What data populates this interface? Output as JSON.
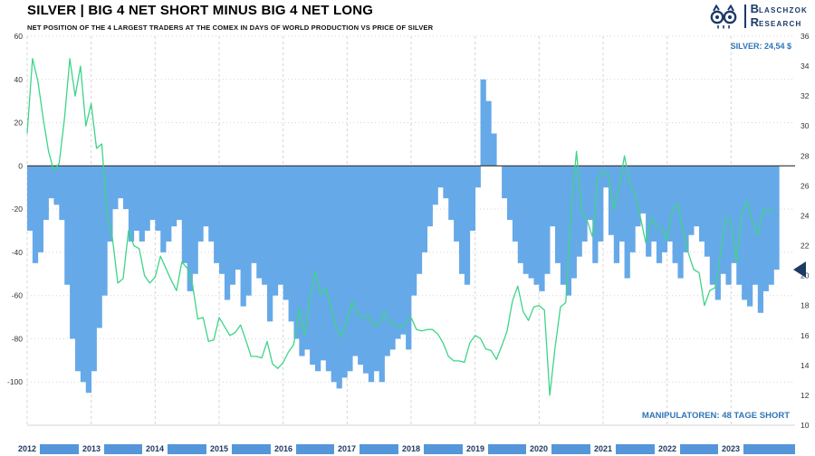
{
  "header": {
    "title": "SILVER | BIG 4 NET SHORT MINUS BIG 4 NET LONG",
    "subtitle": "NET POSITION OF THE 4 LARGEST TRADERS AT THE COMEX IN DAYS OF WORLD PRODUCTION VS PRICE OF SILVER",
    "brand": {
      "line1_initial": "B",
      "line1_rest": "LASCHZOK",
      "line2_initial": "R",
      "line2_rest": "ESEARCH"
    }
  },
  "annotations": {
    "price_label": "SILVER: 24,54 $",
    "manipulators_label": "MANIPULATOREN: 48 TAGE SHORT"
  },
  "colors": {
    "area_blue": "#66a9e8",
    "band_blue": "#5596db",
    "line_green": "#3ed488",
    "annotation_blue": "#2e75b6",
    "brand_navy": "#1b3a66",
    "grid": "#d4d4d4",
    "zero_line": "#333333",
    "tick_text": "#333333"
  },
  "chart_data": {
    "type": "area+line",
    "title": "SILVER | BIG 4 NET SHORT MINUS BIG 4 NET LONG",
    "x_range": [
      2012,
      2024
    ],
    "x_axis_years": [
      2012,
      2013,
      2014,
      2015,
      2016,
      2017,
      2018,
      2019,
      2020,
      2021,
      2022,
      2023
    ],
    "axis_left": {
      "min": -120,
      "max": 60,
      "ticks": [
        60,
        40,
        20,
        0,
        -20,
        -40,
        -60,
        -80,
        -100
      ]
    },
    "axis_right": {
      "min": 10,
      "max": 36,
      "ticks": [
        36,
        34,
        32,
        30,
        28,
        26,
        24,
        22,
        20,
        18,
        16,
        14,
        12,
        10
      ]
    },
    "grid": true,
    "legend": "none",
    "series": [
      {
        "name": "BIG 4 NET SHORT MINUS BIG 4 NET LONG (days of world production)",
        "type": "bar",
        "axis": "left",
        "color_key": "area_blue",
        "start_year": 2012,
        "interval_months": 1,
        "values": [
          -30,
          -45,
          -40,
          -25,
          -15,
          -18,
          -25,
          -55,
          -80,
          -95,
          -100,
          -105,
          -95,
          -75,
          -60,
          -35,
          -20,
          -15,
          -20,
          -35,
          -30,
          -35,
          -30,
          -25,
          -30,
          -40,
          -35,
          -28,
          -25,
          -45,
          -58,
          -50,
          -35,
          -28,
          -35,
          -45,
          -50,
          -62,
          -55,
          -48,
          -65,
          -60,
          -45,
          -52,
          -55,
          -72,
          -60,
          -55,
          -62,
          -72,
          -80,
          -88,
          -85,
          -92,
          -95,
          -90,
          -95,
          -100,
          -103,
          -98,
          -95,
          -88,
          -92,
          -96,
          -100,
          -95,
          -100,
          -88,
          -85,
          -80,
          -78,
          -85,
          -60,
          -50,
          -40,
          -28,
          -18,
          -10,
          -15,
          -25,
          -35,
          -50,
          -55,
          -30,
          -10,
          40,
          30,
          15,
          0,
          -15,
          -25,
          -35,
          -45,
          -50,
          -52,
          -55,
          -58,
          -50,
          -28,
          -45,
          -55,
          -60,
          -52,
          -42,
          -35,
          -25,
          -45,
          -35,
          -10,
          -32,
          -45,
          -35,
          -52,
          -40,
          -28,
          -22,
          -42,
          -35,
          -45,
          -40,
          -35,
          -45,
          -52,
          -40,
          -32,
          -28,
          -35,
          -42,
          -55,
          -62,
          -50,
          -55,
          -45,
          -55,
          -62,
          -65,
          -55,
          -68,
          -58,
          -55,
          -48
        ]
      },
      {
        "name": "SILVER price ($)",
        "type": "line",
        "axis": "right",
        "color_key": "line_green",
        "start_year": 2012,
        "interval_months": 1,
        "values": [
          29.5,
          34.5,
          33.0,
          30.5,
          28.3,
          27.0,
          27.5,
          30.5,
          34.5,
          32.0,
          34.0,
          30.0,
          31.5,
          28.5,
          28.8,
          24.0,
          22.5,
          19.5,
          19.8,
          23.0,
          22.0,
          21.8,
          20.0,
          19.5,
          19.9,
          21.3,
          20.5,
          19.7,
          19.0,
          20.9,
          20.5,
          19.4,
          17.1,
          17.2,
          15.6,
          15.7,
          17.2,
          16.6,
          16.0,
          16.2,
          16.7,
          15.7,
          14.6,
          14.6,
          14.5,
          15.6,
          14.1,
          13.8,
          14.2,
          14.9,
          15.4,
          17.8,
          16.0,
          18.4,
          20.3,
          18.7,
          19.2,
          17.8,
          16.5,
          15.9,
          17.1,
          18.3,
          17.4,
          17.2,
          17.3,
          16.6,
          16.8,
          17.6,
          16.9,
          16.7,
          16.5,
          16.9,
          17.2,
          16.4,
          16.3,
          16.4,
          16.4,
          16.1,
          15.5,
          14.6,
          14.3,
          14.3,
          14.2,
          15.5,
          16.0,
          15.8,
          15.1,
          15.0,
          14.4,
          15.3,
          16.3,
          18.3,
          19.3,
          17.6,
          17.0,
          17.9,
          18.0,
          17.7,
          12.0,
          15.2,
          17.9,
          18.2,
          24.4,
          28.3,
          24.2,
          23.7,
          22.6,
          26.5,
          27.0,
          26.7,
          24.4,
          25.9,
          28.0,
          26.1,
          25.5,
          23.9,
          22.2,
          23.9,
          23.3,
          23.1,
          22.4,
          24.4,
          24.8,
          23.0,
          21.5,
          20.4,
          20.2,
          18.0,
          19.0,
          19.2,
          21.4,
          23.9,
          23.6,
          20.9,
          24.1,
          25.0,
          23.6,
          22.7,
          24.4,
          24.2,
          24.54
        ]
      }
    ],
    "current": {
      "net_days_value": -48,
      "net_days_short": 48,
      "silver_price": 24.54
    }
  }
}
